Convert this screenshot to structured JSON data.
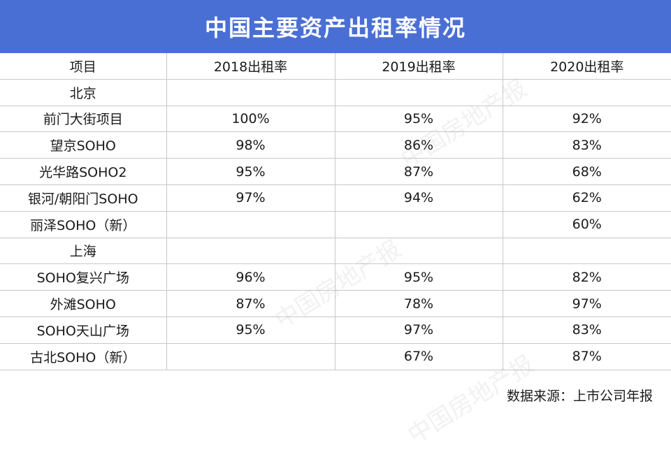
{
  "title": "中国主要资产出租率情况",
  "table": {
    "headers": [
      "项目",
      "2018出租率",
      "2019出租率",
      "2020出租率"
    ],
    "rows": [
      [
        "北京",
        "",
        "",
        ""
      ],
      [
        "前门大街项目",
        "100%",
        "95%",
        "92%"
      ],
      [
        "望京SOHO",
        "98%",
        "86%",
        "83%"
      ],
      [
        "光华路SOHO2",
        "95%",
        "87%",
        "68%"
      ],
      [
        "银河/朝阳门SOHO",
        "97%",
        "94%",
        "62%"
      ],
      [
        "丽泽SOHO（新）",
        "",
        "",
        "60%"
      ],
      [
        "上海",
        "",
        "",
        ""
      ],
      [
        "SOHO复兴广场",
        "96%",
        "95%",
        "82%"
      ],
      [
        "外滩SOHO",
        "87%",
        "78%",
        "97%"
      ],
      [
        "SOHO天山广场",
        "95%",
        "97%",
        "83%"
      ],
      [
        "古北SOHO（新）",
        "",
        "67%",
        "87%"
      ]
    ]
  },
  "source": "数据来源：上市公司年报",
  "watermark_text": "中国房地产报",
  "colors": {
    "title_bg": "#4a6fd4",
    "title_text": "#ffffff",
    "grid_line": "#c8c8c8"
  }
}
